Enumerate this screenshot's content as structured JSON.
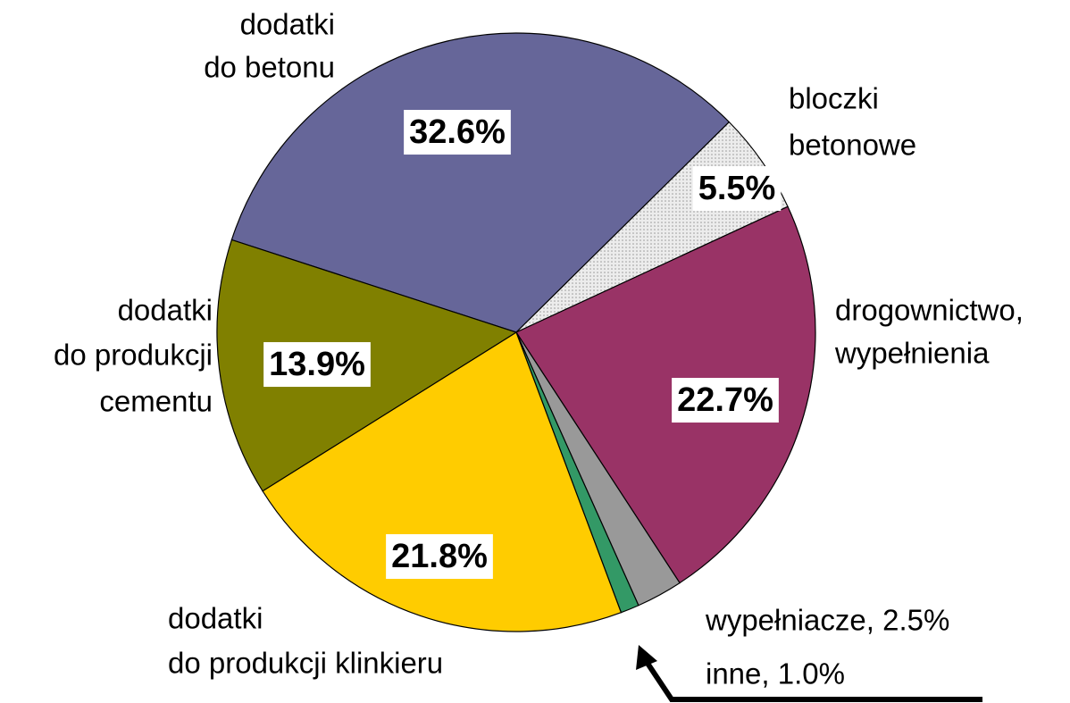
{
  "chart_data": {
    "type": "pie",
    "categories": [
      [
        "dodatki",
        "do betonu"
      ],
      [
        "bloczki",
        "betonowe"
      ],
      [
        "drogownictwo,",
        "wypełnienia"
      ],
      [
        "wypełniacze, 2.5%"
      ],
      [
        "inne, 1.0%"
      ],
      [
        "dodatki",
        "do produkcji klinkieru"
      ],
      [
        "dodatki",
        "do produkcji",
        "cementu"
      ]
    ],
    "values": [
      32.6,
      5.5,
      22.7,
      2.5,
      1.0,
      21.8,
      13.9
    ],
    "value_labels": [
      "32.6%",
      "5.5%",
      "22.7%",
      null,
      null,
      "21.8%",
      "13.9%"
    ],
    "colors": [
      "#666699",
      "#e3e3e3",
      "#993366",
      "#999999",
      "#339966",
      "#ffcc00",
      "#808000"
    ]
  }
}
